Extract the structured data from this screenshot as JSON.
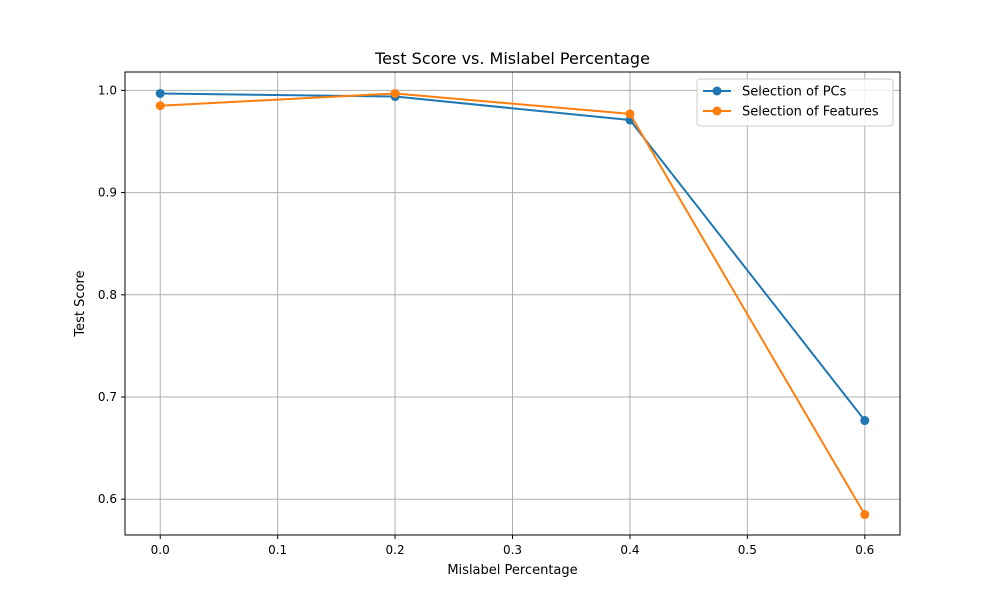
{
  "chart_data": {
    "type": "line",
    "title": "Test Score vs. Mislabel Percentage",
    "xlabel": "Mislabel Percentage",
    "ylabel": "Test Score",
    "xlim": [
      -0.03,
      0.63
    ],
    "ylim": [
      0.565,
      1.018
    ],
    "grid": true,
    "legend_position": "top-right",
    "x_ticks": [
      0.0,
      0.1,
      0.2,
      0.3,
      0.4,
      0.5,
      0.6
    ],
    "x_tick_labels": [
      "0.0",
      "0.1",
      "0.2",
      "0.3",
      "0.4",
      "0.5",
      "0.6"
    ],
    "y_ticks": [
      0.6,
      0.7,
      0.8,
      0.9,
      1.0
    ],
    "y_tick_labels": [
      "0.6",
      "0.7",
      "0.8",
      "0.9",
      "1.0"
    ],
    "x": [
      0.0,
      0.2,
      0.4,
      0.6
    ],
    "series": [
      {
        "name": "Selection of PCs",
        "color": "#1f77b4",
        "values": [
          0.997,
          0.994,
          0.971,
          0.677
        ]
      },
      {
        "name": "Selection of Features",
        "color": "#ff7f0e",
        "values": [
          0.985,
          0.997,
          0.977,
          0.585
        ]
      }
    ]
  }
}
